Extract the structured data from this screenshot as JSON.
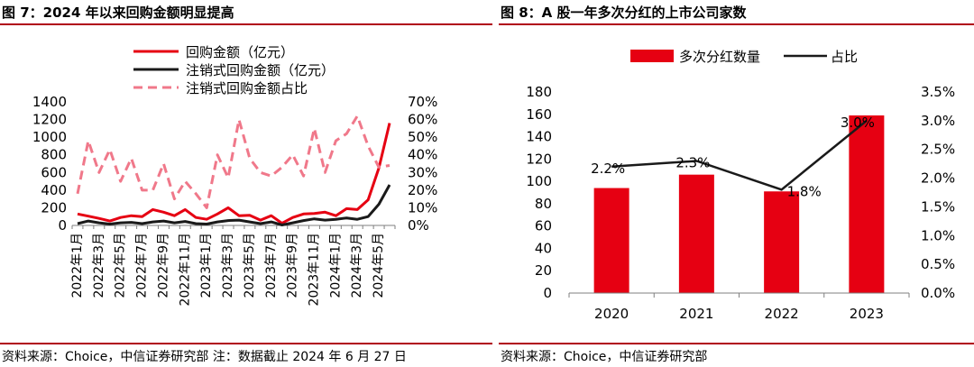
{
  "left": {
    "title": "图 7：2024 年以来回购金额明显提高",
    "source": "资料来源：Choice，中信证券研究部  注：数据截止 2024 年 6 月 27 日",
    "chart_data": {
      "type": "line",
      "x": [
        "2022年1月",
        "2022年2月",
        "2022年3月",
        "2022年4月",
        "2022年5月",
        "2022年6月",
        "2022年7月",
        "2022年8月",
        "2022年9月",
        "2022年10月",
        "2022年11月",
        "2022年12月",
        "2023年1月",
        "2023年2月",
        "2023年3月",
        "2023年4月",
        "2023年5月",
        "2023年6月",
        "2023年7月",
        "2023年8月",
        "2023年9月",
        "2023年10月",
        "2023年11月",
        "2023年12月",
        "2024年1月",
        "2024年2月",
        "2024年3月",
        "2024年4月",
        "2024年5月",
        "2024年6月"
      ],
      "x_tick_labels": [
        "2022年1月",
        "2022年3月",
        "2022年5月",
        "2022年7月",
        "2022年9月",
        "2022年11月",
        "2023年1月",
        "2023年3月",
        "2023年5月",
        "2023年7月",
        "2023年9月",
        "2023年11月",
        "2024年1月",
        "2024年3月",
        "2024年5月"
      ],
      "series": [
        {
          "name": "回购金额（亿元）",
          "axis": "left",
          "color": "#e60012",
          "style": "solid",
          "values": [
            130,
            105,
            80,
            50,
            90,
            110,
            100,
            180,
            150,
            110,
            180,
            90,
            70,
            130,
            200,
            110,
            115,
            60,
            110,
            25,
            90,
            130,
            135,
            150,
            110,
            190,
            180,
            290,
            650,
            1160
          ]
        },
        {
          "name": "注销式回购金额（亿元）",
          "axis": "left",
          "color": "#1a1a1a",
          "style": "solid",
          "values": [
            20,
            50,
            30,
            15,
            30,
            35,
            20,
            40,
            50,
            30,
            45,
            20,
            15,
            40,
            55,
            60,
            40,
            20,
            40,
            5,
            30,
            55,
            75,
            60,
            70,
            85,
            70,
            100,
            240,
            460
          ]
        },
        {
          "name": "注销式回购金额占比",
          "axis": "right",
          "color": "#f0788a",
          "style": "dashed",
          "values": [
            18,
            48,
            30,
            43,
            25,
            38,
            20,
            20,
            35,
            15,
            25,
            18,
            10,
            40,
            27,
            60,
            38,
            30,
            28,
            33,
            40,
            28,
            55,
            30,
            48,
            52,
            62,
            45,
            33,
            34
          ]
        }
      ],
      "ylim_left": [
        0,
        1400
      ],
      "yticks_left": [
        "0",
        "200",
        "400",
        "600",
        "800",
        "1000",
        "1200",
        "1400"
      ],
      "ylim_right": [
        0,
        70
      ],
      "yticks_right": [
        "0%",
        "10%",
        "20%",
        "30%",
        "40%",
        "50%",
        "60%",
        "70%"
      ]
    }
  },
  "right": {
    "title": "图 8：A 股一年多次分红的上市公司家数",
    "source": "资料来源：Choice，中信证券研究部",
    "chart_data": {
      "type": "bar",
      "categories": [
        "2020",
        "2021",
        "2022",
        "2023"
      ],
      "series": [
        {
          "name": "多次分红数量",
          "kind": "bar",
          "axis": "left",
          "color": "#e60012",
          "values": [
            94,
            106,
            91,
            159
          ]
        },
        {
          "name": "占比",
          "kind": "line",
          "axis": "right",
          "color": "#1a1a1a",
          "values": [
            2.2,
            2.3,
            1.8,
            3.0
          ],
          "labels": [
            "2.2%",
            "2.3%",
            "1.8%",
            "3.0%"
          ]
        }
      ],
      "ylim_left": [
        0,
        180
      ],
      "yticks_left": [
        "0",
        "20",
        "40",
        "60",
        "80",
        "100",
        "120",
        "140",
        "160",
        "180"
      ],
      "ylim_right": [
        0,
        3.5
      ],
      "yticks_right": [
        "0.0%",
        "0.5%",
        "1.0%",
        "1.5%",
        "2.0%",
        "2.5%",
        "3.0%",
        "3.5%"
      ]
    }
  }
}
